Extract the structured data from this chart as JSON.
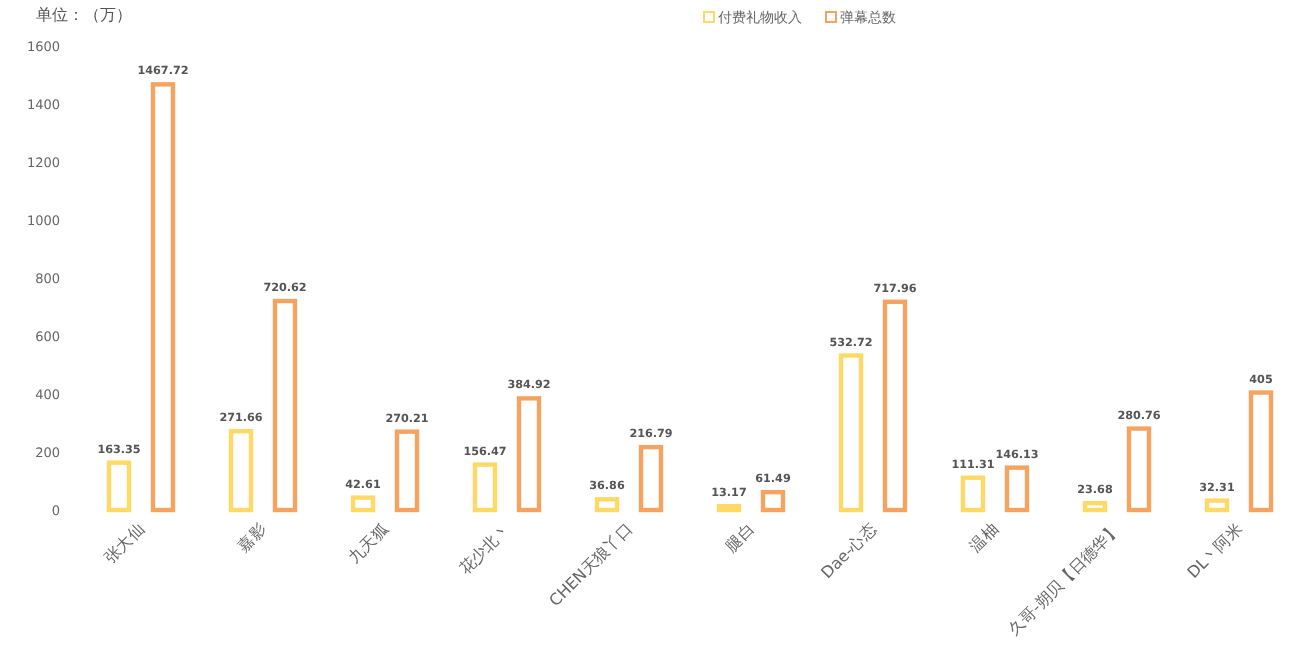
{
  "chart_data": {
    "type": "bar",
    "annotations": [
      "单位：（万）"
    ],
    "categories": [
      "张大仙",
      "嘉影",
      "九天狐",
      "花少北丶",
      "CHEN天狼丫口",
      "腿白",
      "Dae-心态",
      "温柚",
      "久哥-朔贝【日德华】",
      "DL丶阿米"
    ],
    "series": [
      {
        "name": "付费礼物收入",
        "color": "#ffd966",
        "values": [
          163.35,
          271.66,
          42.61,
          156.47,
          36.86,
          13.17,
          532.72,
          111.31,
          23.68,
          32.31
        ]
      },
      {
        "name": "弹幕总数",
        "color": "#f4a460",
        "values": [
          1467.72,
          720.62,
          270.21,
          384.92,
          216.79,
          61.49,
          717.96,
          146.13,
          280.76,
          405
        ]
      }
    ],
    "ylim": [
      0,
      1600
    ],
    "yticks": [
      0,
      200,
      400,
      600,
      800,
      1000,
      1200,
      1400,
      1600
    ],
    "grid": false,
    "legend": "top",
    "data_labels": true
  }
}
